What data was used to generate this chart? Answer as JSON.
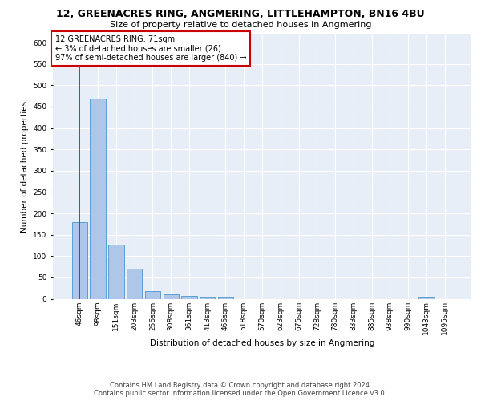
{
  "title_line1": "12, GREENACRES RING, ANGMERING, LITTLEHAMPTON, BN16 4BU",
  "title_line2": "Size of property relative to detached houses in Angmering",
  "xlabel": "Distribution of detached houses by size in Angmering",
  "ylabel": "Number of detached properties",
  "footer_line1": "Contains HM Land Registry data © Crown copyright and database right 2024.",
  "footer_line2": "Contains public sector information licensed under the Open Government Licence v3.0.",
  "bar_labels": [
    "46sqm",
    "98sqm",
    "151sqm",
    "203sqm",
    "256sqm",
    "308sqm",
    "361sqm",
    "413sqm",
    "466sqm",
    "518sqm",
    "570sqm",
    "623sqm",
    "675sqm",
    "728sqm",
    "780sqm",
    "833sqm",
    "885sqm",
    "938sqm",
    "990sqm",
    "1043sqm",
    "1095sqm"
  ],
  "bar_values": [
    180,
    468,
    126,
    70,
    18,
    11,
    7,
    5,
    5,
    0,
    0,
    0,
    0,
    0,
    0,
    0,
    0,
    0,
    0,
    5,
    0
  ],
  "bar_color": "#aec6e8",
  "bar_edge_color": "#5a9fd4",
  "property_label": "12 GREENACRES RING: 71sqm",
  "pct_smaller": "3% of detached houses are smaller (26)",
  "pct_larger": "97% of semi-detached houses are larger (840)",
  "annotation_box_color": "#cc0000",
  "vline_color": "#cc0000",
  "ylim": [
    0,
    620
  ],
  "yticks": [
    0,
    50,
    100,
    150,
    200,
    250,
    300,
    350,
    400,
    450,
    500,
    550,
    600
  ],
  "bg_color": "#e8eef7",
  "grid_color": "#ffffff",
  "title_fontsize": 9,
  "subtitle_fontsize": 8,
  "axis_label_fontsize": 7.5,
  "tick_fontsize": 6.5,
  "annotation_fontsize": 7,
  "footer_fontsize": 6
}
